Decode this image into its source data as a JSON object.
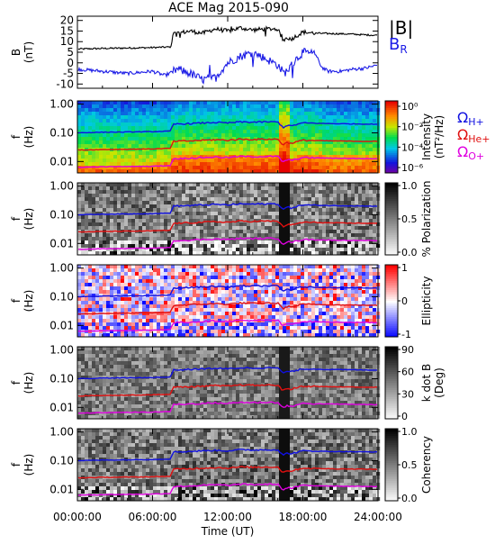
{
  "chart_data": {
    "title": "ACE Mag 2015-090",
    "xlabel": "Time (UT)",
    "x_ticks": [
      "00:00:00",
      "06:00:00",
      "12:00:00",
      "18:00:00",
      "24:00:00"
    ],
    "x_range_hours": [
      0,
      24
    ],
    "freq_ticks": [
      "1.00",
      "0.10",
      "0.01"
    ],
    "freq_axis_label": "f",
    "freq_axis_unit": "(Hz)",
    "gyrofrequency_labels": [
      {
        "text": "ΩH+",
        "color": "#1010e0"
      },
      {
        "text": "ΩHe+",
        "color": "#e01010"
      },
      {
        "text": "ΩO+",
        "color": "#e000e0"
      }
    ],
    "panels": [
      {
        "type": "line",
        "ylabel": "B",
        "yunit": "(nT)",
        "y_ticks": [
          "20",
          "15",
          "10",
          "5",
          "0",
          "-5",
          "-10"
        ],
        "ylim": [
          -12,
          22
        ],
        "series": [
          {
            "name": "|B|",
            "color": "#000000"
          },
          {
            "name": "BR",
            "color": "#1a1ae6"
          }
        ],
        "legend_main": "|B|",
        "legend_sub_main": "B",
        "legend_sub_index": "R"
      },
      {
        "type": "heatmap",
        "colormap": "rainbow",
        "colorbar_label": "Intensity",
        "colorbar_unit": "(nT²/Hz)",
        "colorbar_ticks": [
          "10⁰",
          "10⁻²",
          "10⁻⁴",
          "10⁻⁶"
        ]
      },
      {
        "type": "heatmap",
        "colormap": "gray",
        "colorbar_label": "% Polarization",
        "colorbar_unit": "",
        "colorbar_ticks": [
          "1.0",
          "0.5",
          "0.0"
        ]
      },
      {
        "type": "heatmap",
        "colormap": "bwr",
        "colorbar_label": "Ellipticity",
        "colorbar_unit": "",
        "colorbar_ticks": [
          "1",
          "0",
          "-1"
        ]
      },
      {
        "type": "heatmap",
        "colormap": "gray",
        "colorbar_label": "k dot B",
        "colorbar_unit": "(Deg)",
        "colorbar_ticks": [
          "90",
          "60",
          "30",
          "0"
        ]
      },
      {
        "type": "heatmap",
        "colormap": "gray",
        "colorbar_label": "Coherency",
        "colorbar_unit": "",
        "colorbar_ticks": [
          "1.0",
          "0.5",
          "0.0"
        ]
      }
    ],
    "B_magnitude_nT": {
      "t_hours": [
        0,
        2,
        4,
        6,
        7.5,
        7.6,
        8,
        9,
        10,
        11,
        12,
        13,
        14,
        15,
        16,
        16.4,
        16.8,
        17,
        18,
        19,
        20,
        21,
        22,
        23,
        24
      ],
      "values": [
        6.5,
        6.8,
        7,
        7.2,
        7.5,
        13.5,
        14,
        15,
        14,
        16,
        15,
        16.5,
        15.5,
        16,
        16,
        10.5,
        12,
        11,
        14.5,
        14,
        13.8,
        13.7,
        13.5,
        13.2,
        13
      ]
    },
    "B_R_nT": {
      "t_hours": [
        0,
        2,
        4,
        6,
        7,
        8,
        9,
        10,
        11,
        12,
        13,
        14,
        15,
        16,
        16.5,
        17,
        17.5,
        18,
        19,
        19.5,
        20,
        21,
        22,
        23,
        24
      ],
      "values": [
        -3,
        -4,
        -5,
        -4,
        -6,
        -3,
        -5,
        -8,
        -7,
        0,
        3,
        5,
        2,
        -1,
        -5,
        -2,
        2,
        5,
        4,
        -2,
        -4,
        -4,
        -3,
        -2.5,
        -1
      ]
    },
    "gyrofrequency_Hz": {
      "t_hours": [
        0,
        2,
        4,
        6,
        7.5,
        7.6,
        9,
        11,
        12,
        13,
        14,
        15,
        16,
        16.4,
        16.8,
        17,
        18,
        20,
        22,
        24
      ],
      "H_plus": [
        0.1,
        0.105,
        0.107,
        0.11,
        0.115,
        0.2,
        0.21,
        0.23,
        0.22,
        0.24,
        0.235,
        0.24,
        0.24,
        0.15,
        0.19,
        0.17,
        0.22,
        0.21,
        0.205,
        0.2
      ]
    }
  }
}
